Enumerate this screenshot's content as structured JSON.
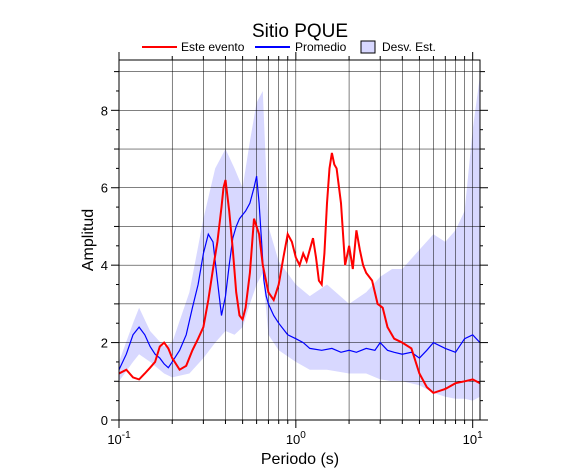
{
  "chart_data": {
    "type": "line",
    "title": "Sitio PQUE",
    "xlabel": "Periodo (s)",
    "ylabel": "Amplitud",
    "xscale": "log",
    "xlim": [
      0.1,
      11
    ],
    "ylim": [
      0,
      9.3
    ],
    "grid": true,
    "legend_position": "top",
    "xticks": [
      {
        "value": 0.1,
        "base": "10",
        "exp": "-1"
      },
      {
        "value": 1,
        "base": "10",
        "exp": "0"
      },
      {
        "value": 10,
        "base": "10",
        "exp": "1"
      }
    ],
    "yticks": [
      0,
      2,
      4,
      6,
      8
    ],
    "legend": [
      {
        "label": "Este evento",
        "color": "#ff0000",
        "kind": "line"
      },
      {
        "label": "Promedio",
        "color": "#0000ff",
        "kind": "line"
      },
      {
        "label": "Desv. Est.",
        "color": "#d8d8ff",
        "kind": "box"
      }
    ],
    "series": [
      {
        "name": "Este evento",
        "color": "#ff0000",
        "x": [
          0.1,
          0.11,
          0.12,
          0.13,
          0.14,
          0.15,
          0.16,
          0.17,
          0.18,
          0.19,
          0.2,
          0.22,
          0.24,
          0.26,
          0.28,
          0.3,
          0.32,
          0.34,
          0.36,
          0.38,
          0.39,
          0.4,
          0.42,
          0.44,
          0.46,
          0.48,
          0.5,
          0.52,
          0.55,
          0.58,
          0.62,
          0.65,
          0.7,
          0.75,
          0.8,
          0.85,
          0.9,
          0.95,
          1.0,
          1.05,
          1.1,
          1.15,
          1.2,
          1.25,
          1.3,
          1.35,
          1.4,
          1.45,
          1.5,
          1.55,
          1.6,
          1.65,
          1.7,
          1.8,
          1.9,
          2.0,
          2.1,
          2.2,
          2.3,
          2.4,
          2.5,
          2.7,
          2.9,
          3.1,
          3.3,
          3.6,
          4.0,
          4.5,
          5.0,
          5.5,
          6.0,
          7.0,
          8.0,
          9.0,
          10.0,
          11.0
        ],
        "values": [
          1.2,
          1.3,
          1.1,
          1.05,
          1.2,
          1.35,
          1.5,
          1.9,
          2.0,
          1.85,
          1.6,
          1.3,
          1.4,
          1.8,
          2.1,
          2.4,
          3.1,
          3.9,
          4.6,
          5.5,
          6.0,
          6.2,
          5.4,
          4.4,
          3.3,
          2.7,
          2.6,
          2.9,
          3.8,
          5.2,
          4.8,
          4.0,
          3.3,
          3.1,
          3.5,
          4.2,
          4.8,
          4.6,
          4.2,
          4.0,
          4.3,
          4.1,
          4.4,
          4.7,
          4.2,
          3.6,
          3.5,
          4.3,
          5.6,
          6.5,
          6.9,
          6.6,
          6.5,
          5.6,
          4.0,
          4.5,
          3.9,
          4.9,
          4.4,
          4.0,
          3.8,
          3.6,
          3.0,
          2.9,
          2.4,
          2.1,
          2.0,
          1.85,
          1.2,
          0.85,
          0.7,
          0.8,
          0.95,
          1.0,
          1.05,
          0.95
        ]
      },
      {
        "name": "Promedio",
        "color": "#0000ff",
        "x": [
          0.1,
          0.11,
          0.12,
          0.13,
          0.14,
          0.15,
          0.16,
          0.17,
          0.18,
          0.19,
          0.2,
          0.22,
          0.24,
          0.26,
          0.28,
          0.3,
          0.32,
          0.34,
          0.36,
          0.38,
          0.4,
          0.42,
          0.44,
          0.46,
          0.48,
          0.5,
          0.52,
          0.55,
          0.58,
          0.6,
          0.62,
          0.64,
          0.66,
          0.68,
          0.7,
          0.75,
          0.8,
          0.9,
          1.0,
          1.1,
          1.2,
          1.4,
          1.6,
          1.8,
          2.0,
          2.2,
          2.5,
          2.8,
          3.0,
          3.3,
          3.6,
          4.0,
          4.5,
          5.0,
          5.5,
          6.0,
          7.0,
          8.0,
          9.0,
          10.0,
          11.0
        ],
        "values": [
          1.3,
          1.7,
          2.2,
          2.4,
          2.2,
          1.9,
          1.7,
          1.6,
          1.45,
          1.35,
          1.5,
          1.8,
          2.2,
          2.9,
          3.5,
          4.3,
          4.8,
          4.6,
          3.6,
          2.7,
          3.2,
          4.0,
          4.7,
          5.0,
          5.2,
          5.3,
          5.4,
          5.6,
          6.0,
          6.3,
          5.6,
          4.6,
          3.6,
          3.2,
          3.0,
          2.7,
          2.5,
          2.2,
          2.1,
          2.0,
          1.85,
          1.8,
          1.85,
          1.75,
          1.8,
          1.75,
          1.85,
          1.8,
          2.0,
          1.8,
          1.75,
          1.7,
          1.75,
          1.6,
          1.8,
          2.0,
          1.85,
          1.75,
          2.1,
          2.2,
          2.0
        ]
      },
      {
        "name": "Desv. Est.",
        "type": "band",
        "color": "#d8d8ff",
        "x": [
          0.1,
          0.12,
          0.13,
          0.15,
          0.18,
          0.2,
          0.25,
          0.3,
          0.35,
          0.4,
          0.45,
          0.5,
          0.55,
          0.6,
          0.65,
          0.7,
          0.8,
          1.0,
          1.2,
          1.5,
          2.0,
          2.5,
          3.0,
          3.5,
          4.0,
          5.0,
          6.0,
          7.0,
          8.0,
          9.0,
          10.0,
          11.0
        ],
        "upper": [
          1.5,
          2.5,
          2.9,
          2.3,
          1.9,
          2.0,
          3.3,
          5.2,
          6.5,
          7.0,
          6.5,
          6.0,
          7.2,
          8.2,
          8.5,
          5.0,
          4.1,
          3.5,
          3.2,
          3.5,
          3.0,
          3.3,
          3.7,
          3.9,
          3.9,
          4.4,
          4.8,
          4.6,
          4.9,
          5.4,
          7.5,
          8.9
        ],
        "lower": [
          1.0,
          1.5,
          1.7,
          1.5,
          1.2,
          1.1,
          1.2,
          1.6,
          2.0,
          2.3,
          2.2,
          2.4,
          3.0,
          3.5,
          3.8,
          2.2,
          1.8,
          1.5,
          1.3,
          1.3,
          1.2,
          1.2,
          1.05,
          1.0,
          1.0,
          0.9,
          0.7,
          0.6,
          0.55,
          0.55,
          0.5,
          0.6
        ]
      }
    ]
  }
}
